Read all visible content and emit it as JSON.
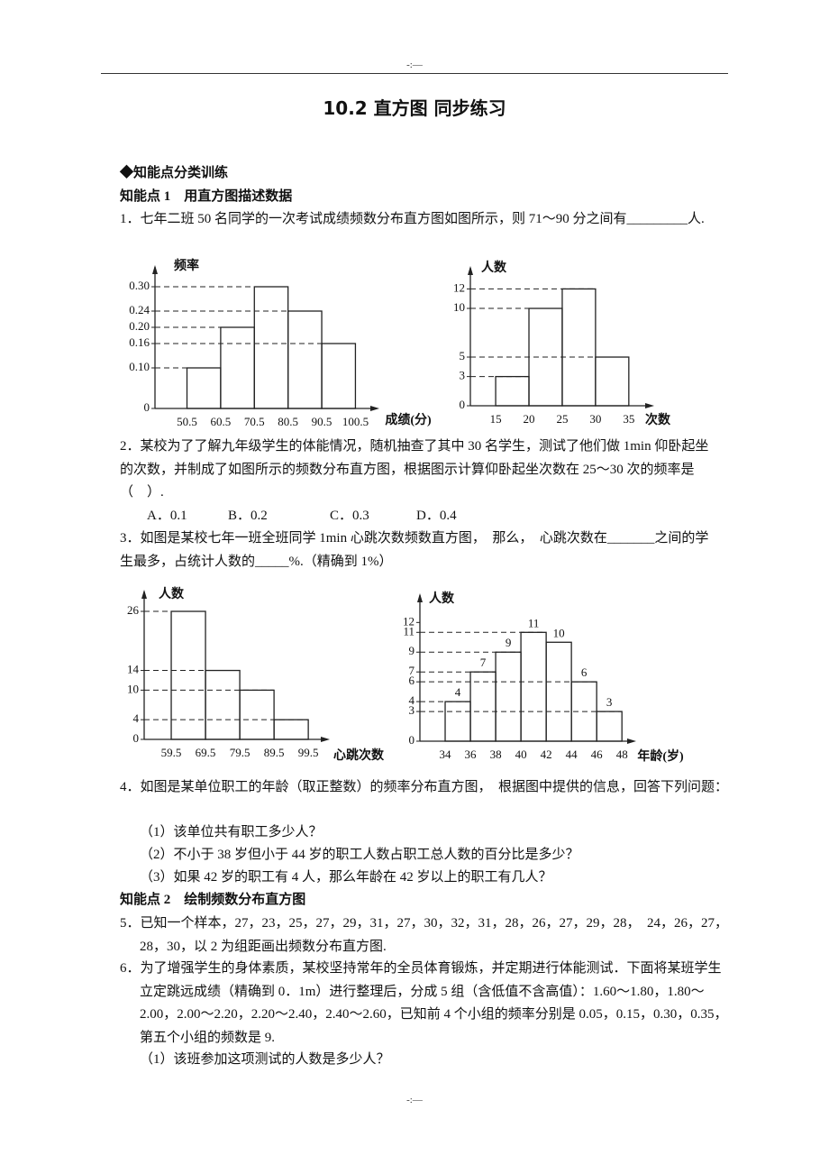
{
  "header_mark": "-:—",
  "title": "10.2 直方图 同步练习",
  "section": "◆知能点分类训练",
  "topics": [
    "知能点 1　用直方图描述数据",
    "知能点 2　绘制频数分布直方图"
  ],
  "questions": [
    {
      "text": "1．七年二班 50 名同学的一次考试成绩频数分布直方图如图所示，则 71～90 分之间有_________人."
    },
    {
      "text": "2．某校为了了解九年级学生的体能情况，随机抽查了其中 30 名学生，测试了他们做 1min 仰卧起坐的次数，并制成了如图所示的频数分布直方图，根据图示计算仰卧起坐次数在 25～30 次的频率是（　）.",
      "options": [
        "A．0.1",
        "B．0.2",
        "C．0.3",
        "D．0.4"
      ]
    },
    {
      "text": "3．如图是某校七年一班全班同学 1min 心跳次数频数直方图，　那么，　心跳次数在_______之间的学生最多，占统计人数的_____%.（精确到 1%）"
    },
    {
      "text": "4．如图是某单位职工的年龄（取正整数）的频率分布直方图，　根据图中提供的信息，回答下列问题：",
      "sub": [
        "（1）该单位共有职工多少人？",
        "（2）不小于 38 岁但小于 44 岁的职工人数占职工总人数的百分比是多少？",
        "（3）如果 42 岁的职工有 4 人，那么年龄在 42 岁以上的职工有几人？"
      ]
    },
    {
      "text": "5．已知一个样本，27，23，25，27，29，31，27，30，32，31，28，26，27，29，28，　24，26，27，28，30，以 2 为组距画出频数分布直方图."
    },
    {
      "text": "6．为了增强学生的身体素质，某校坚持常年的全员体育锻炼，并定期进行体能测试．下面将某班学生立定跳远成绩（精确到 0．1m）进行整理后，分成 5 组（含低值不含高值）：1.60～1.80，1.80～2.00，2.00～2.20，2.20～2.40，2.40～2.60，已知前 4 个小组的频率分别是 0.05，0.15，0.30，0.35，第五个小组的频数是 9.",
      "sub": [
        "（1）该班参加这项测试的人数是多少人？"
      ]
    }
  ],
  "footer_mark": "-:—",
  "chart_data": [
    {
      "type": "histogram",
      "y_label": "频率",
      "x_label": "成绩(分)",
      "bins": [
        50.5,
        60.5,
        70.5,
        80.5,
        90.5,
        100.5
      ],
      "values": [
        0.1,
        0.2,
        0.3,
        0.24,
        0.16
      ],
      "xlim": [
        41,
        106
      ],
      "ylim": [
        0,
        0.34
      ],
      "yticks": [
        0,
        {
          "value": 0.1,
          "label": "0.10"
        },
        {
          "value": 0.16,
          "label": "0.16"
        },
        {
          "value": 0.2,
          "label": "0.20"
        },
        {
          "value": 0.24,
          "label": "0.24"
        },
        {
          "value": 0.3,
          "label": "0.30"
        }
      ],
      "color": "#222222",
      "guide_lines": "dashed"
    },
    {
      "type": "histogram",
      "y_label": "人数",
      "x_label": "次数",
      "bins": [
        15,
        20,
        25,
        30,
        35
      ],
      "values": [
        3,
        10,
        12,
        5
      ],
      "xlim": [
        11.2,
        38
      ],
      "ylim": [
        0,
        13.8
      ],
      "yticks": [
        0,
        3,
        5,
        10,
        12
      ],
      "color": "#222222",
      "guide_lines": "dashed"
    },
    {
      "type": "histogram",
      "y_label": "人数",
      "x_label": "心跳次数",
      "bins": [
        59.5,
        69.5,
        79.5,
        89.5,
        99.5
      ],
      "values": [
        26,
        14,
        10,
        4
      ],
      "xlim": [
        51.6,
        104.2
      ],
      "ylim": [
        0,
        29.3
      ],
      "yticks": [
        0,
        4,
        10,
        14,
        26
      ],
      "color": "#222222",
      "guide_lines": "dashed"
    },
    {
      "type": "histogram",
      "y_label": "人数",
      "x_label": "年龄(岁)",
      "bins": [
        34,
        36,
        38,
        40,
        42,
        44,
        46,
        48
      ],
      "values": [
        4,
        7,
        9,
        11,
        10,
        6,
        3
      ],
      "xlim": [
        32,
        48.7
      ],
      "ylim": [
        0,
        14.4
      ],
      "yticks": [
        0,
        3,
        4,
        6,
        7,
        9,
        11,
        12
      ],
      "color": "#222222",
      "guide_lines": "dashed",
      "data_labels": true
    }
  ]
}
